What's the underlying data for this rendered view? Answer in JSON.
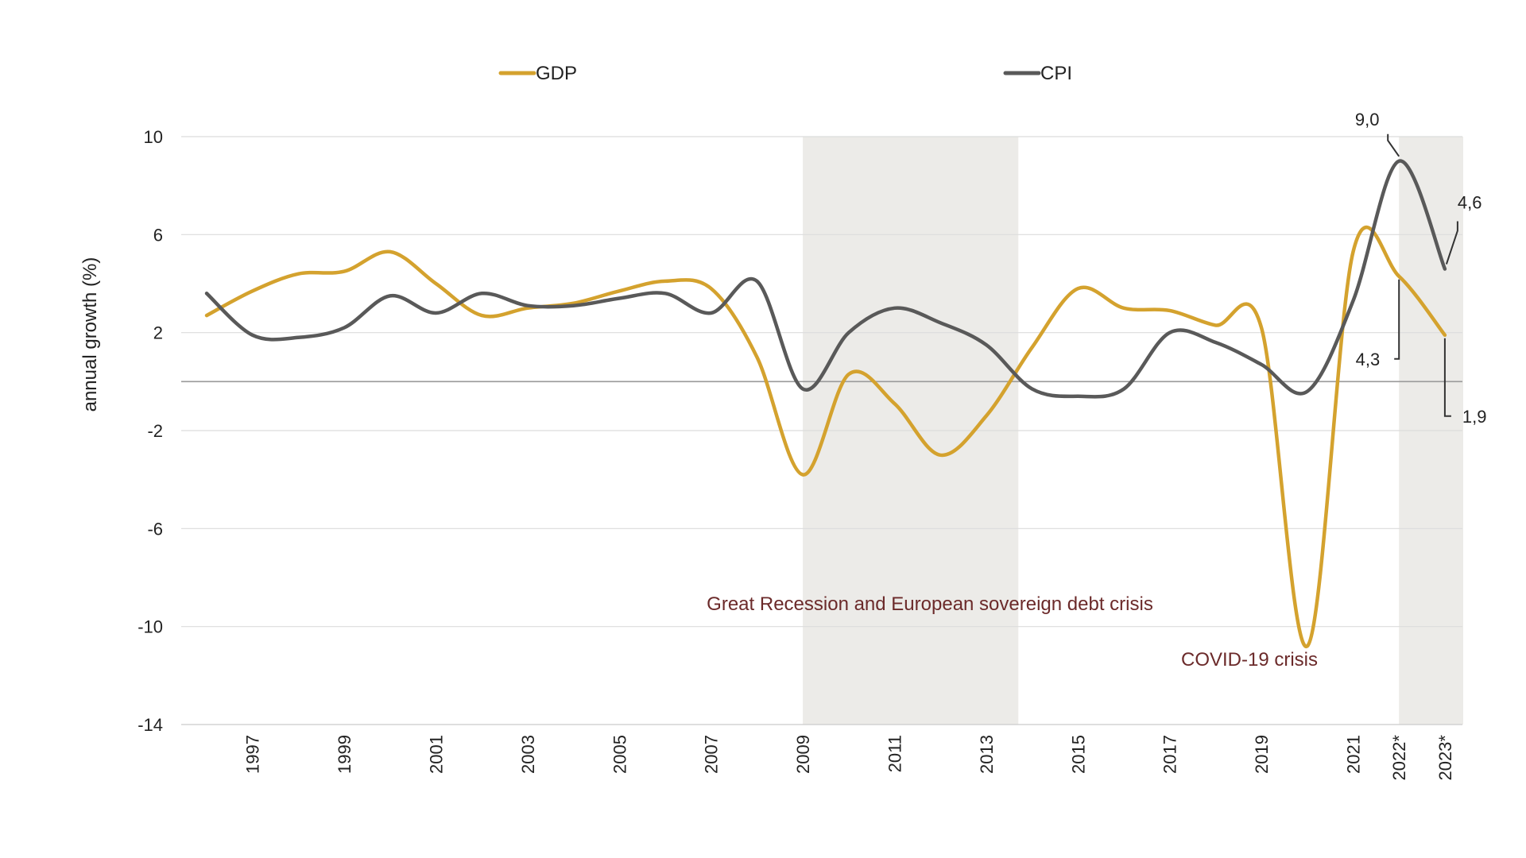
{
  "chart_data": {
    "type": "line",
    "ylabel": "annual growth (%)",
    "xlabel": "",
    "ylim": [
      -14,
      10
    ],
    "yticks": [
      10,
      6,
      2,
      -2,
      -6,
      -10,
      -14
    ],
    "xlim": [
      1996,
      2023
    ],
    "xticks": [
      {
        "x": 1997,
        "label": "1997"
      },
      {
        "x": 1999,
        "label": "1999"
      },
      {
        "x": 2001,
        "label": "2001"
      },
      {
        "x": 2003,
        "label": "2003"
      },
      {
        "x": 2005,
        "label": "2005"
      },
      {
        "x": 2007,
        "label": "2007"
      },
      {
        "x": 2009,
        "label": "2009"
      },
      {
        "x": 2011,
        "label": "2011"
      },
      {
        "x": 2013,
        "label": "2013"
      },
      {
        "x": 2015,
        "label": "2015"
      },
      {
        "x": 2017,
        "label": "2017"
      },
      {
        "x": 2019,
        "label": "2019"
      },
      {
        "x": 2021,
        "label": "2021"
      },
      {
        "x": 2022,
        "label": "2022*"
      },
      {
        "x": 2023,
        "label": "2023*"
      }
    ],
    "x": [
      1996,
      1997,
      1998,
      1999,
      2000,
      2001,
      2002,
      2003,
      2004,
      2005,
      2006,
      2007,
      2008,
      2009,
      2010,
      2011,
      2012,
      2013,
      2014,
      2015,
      2016,
      2017,
      2018,
      2019,
      2020,
      2021,
      2022,
      2023
    ],
    "series": [
      {
        "name": "GDP",
        "color": "#d4a22e",
        "values": [
          2.7,
          3.7,
          4.4,
          4.5,
          5.3,
          4.0,
          2.7,
          3.0,
          3.2,
          3.7,
          4.1,
          3.8,
          1.0,
          -3.8,
          0.3,
          -0.9,
          -3.0,
          -1.4,
          1.4,
          3.8,
          3.0,
          2.9,
          2.3,
          2.2,
          -10.8,
          5.3,
          4.3,
          1.9
        ]
      },
      {
        "name": "CPI",
        "color": "#595959",
        "values": [
          3.6,
          1.9,
          1.8,
          2.2,
          3.5,
          2.8,
          3.6,
          3.1,
          3.1,
          3.4,
          3.6,
          2.8,
          4.1,
          -0.3,
          2.0,
          3.0,
          2.4,
          1.5,
          -0.3,
          -0.6,
          -0.3,
          2.0,
          1.6,
          0.7,
          -0.4,
          3.3,
          9.0,
          4.6
        ]
      }
    ],
    "shaded_periods": [
      {
        "from": 2009,
        "to": 2013.7,
        "label": "Great Recession and European sovereign debt crisis"
      },
      {
        "from": 2022,
        "to": 2023.4,
        "label": ""
      }
    ],
    "annotations": [
      {
        "text": "COVID-19 crisis"
      },
      {
        "text": "9,0",
        "series": "CPI",
        "x": 2022,
        "y": 9.0
      },
      {
        "text": "4,6",
        "series": "CPI",
        "x": 2023,
        "y": 4.6
      },
      {
        "text": "4,3",
        "series": "GDP",
        "x": 2022,
        "y": 4.3
      },
      {
        "text": "1,9",
        "series": "GDP",
        "x": 2023,
        "y": 1.9
      }
    ],
    "legend": "top",
    "grid": true
  }
}
